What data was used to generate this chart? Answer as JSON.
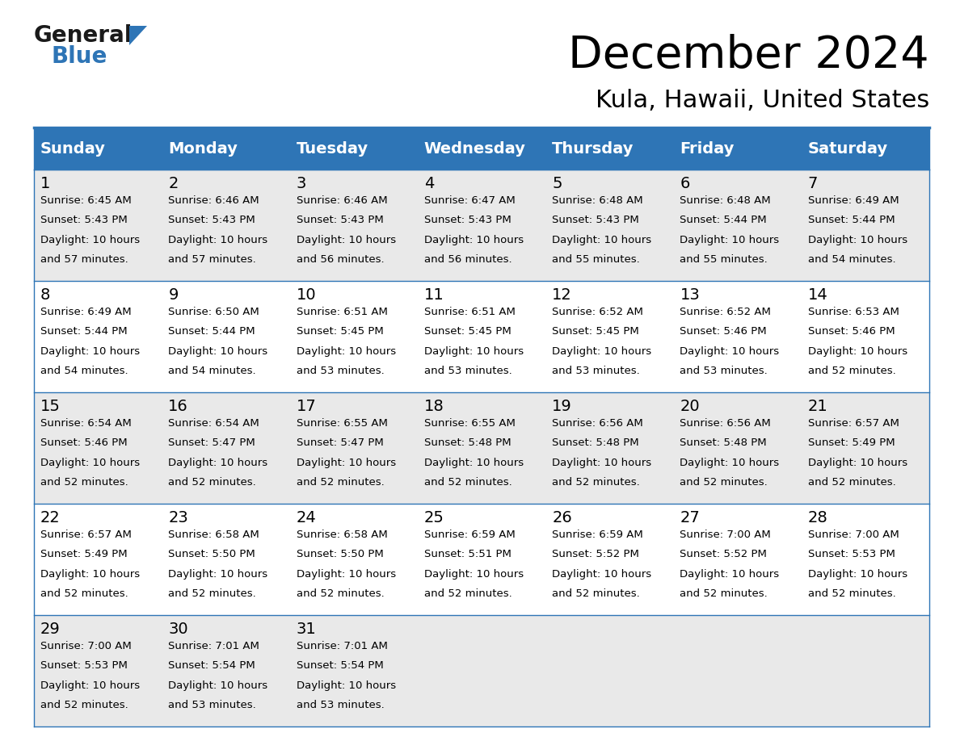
{
  "title": "December 2024",
  "subtitle": "Kula, Hawaii, United States",
  "header_bg_color": "#2E75B6",
  "header_text_color": "#FFFFFF",
  "header_font_size": 14,
  "day_names": [
    "Sunday",
    "Monday",
    "Tuesday",
    "Wednesday",
    "Thursday",
    "Friday",
    "Saturday"
  ],
  "title_font_size": 40,
  "subtitle_font_size": 22,
  "cell_text_font_size": 9.5,
  "day_num_font_size": 14,
  "bg_color": "#FFFFFF",
  "row_colors": [
    "#E9E9E9",
    "#FFFFFF",
    "#E9E9E9",
    "#FFFFFF",
    "#E9E9E9"
  ],
  "grid_color": "#2E75B6",
  "general_text_color": "#000000",
  "logo_blue_color": "#2E75B6",
  "logo_dark_color": "#1A1A1A",
  "weeks": [
    [
      {
        "day": 1,
        "sunrise": "6:45 AM",
        "sunset": "5:43 PM",
        "daylight": "10 hours and 57 minutes"
      },
      {
        "day": 2,
        "sunrise": "6:46 AM",
        "sunset": "5:43 PM",
        "daylight": "10 hours and 57 minutes"
      },
      {
        "day": 3,
        "sunrise": "6:46 AM",
        "sunset": "5:43 PM",
        "daylight": "10 hours and 56 minutes"
      },
      {
        "day": 4,
        "sunrise": "6:47 AM",
        "sunset": "5:43 PM",
        "daylight": "10 hours and 56 minutes"
      },
      {
        "day": 5,
        "sunrise": "6:48 AM",
        "sunset": "5:43 PM",
        "daylight": "10 hours and 55 minutes"
      },
      {
        "day": 6,
        "sunrise": "6:48 AM",
        "sunset": "5:44 PM",
        "daylight": "10 hours and 55 minutes"
      },
      {
        "day": 7,
        "sunrise": "6:49 AM",
        "sunset": "5:44 PM",
        "daylight": "10 hours and 54 minutes"
      }
    ],
    [
      {
        "day": 8,
        "sunrise": "6:49 AM",
        "sunset": "5:44 PM",
        "daylight": "10 hours and 54 minutes"
      },
      {
        "day": 9,
        "sunrise": "6:50 AM",
        "sunset": "5:44 PM",
        "daylight": "10 hours and 54 minutes"
      },
      {
        "day": 10,
        "sunrise": "6:51 AM",
        "sunset": "5:45 PM",
        "daylight": "10 hours and 53 minutes"
      },
      {
        "day": 11,
        "sunrise": "6:51 AM",
        "sunset": "5:45 PM",
        "daylight": "10 hours and 53 minutes"
      },
      {
        "day": 12,
        "sunrise": "6:52 AM",
        "sunset": "5:45 PM",
        "daylight": "10 hours and 53 minutes"
      },
      {
        "day": 13,
        "sunrise": "6:52 AM",
        "sunset": "5:46 PM",
        "daylight": "10 hours and 53 minutes"
      },
      {
        "day": 14,
        "sunrise": "6:53 AM",
        "sunset": "5:46 PM",
        "daylight": "10 hours and 52 minutes"
      }
    ],
    [
      {
        "day": 15,
        "sunrise": "6:54 AM",
        "sunset": "5:46 PM",
        "daylight": "10 hours and 52 minutes"
      },
      {
        "day": 16,
        "sunrise": "6:54 AM",
        "sunset": "5:47 PM",
        "daylight": "10 hours and 52 minutes"
      },
      {
        "day": 17,
        "sunrise": "6:55 AM",
        "sunset": "5:47 PM",
        "daylight": "10 hours and 52 minutes"
      },
      {
        "day": 18,
        "sunrise": "6:55 AM",
        "sunset": "5:48 PM",
        "daylight": "10 hours and 52 minutes"
      },
      {
        "day": 19,
        "sunrise": "6:56 AM",
        "sunset": "5:48 PM",
        "daylight": "10 hours and 52 minutes"
      },
      {
        "day": 20,
        "sunrise": "6:56 AM",
        "sunset": "5:48 PM",
        "daylight": "10 hours and 52 minutes"
      },
      {
        "day": 21,
        "sunrise": "6:57 AM",
        "sunset": "5:49 PM",
        "daylight": "10 hours and 52 minutes"
      }
    ],
    [
      {
        "day": 22,
        "sunrise": "6:57 AM",
        "sunset": "5:49 PM",
        "daylight": "10 hours and 52 minutes"
      },
      {
        "day": 23,
        "sunrise": "6:58 AM",
        "sunset": "5:50 PM",
        "daylight": "10 hours and 52 minutes"
      },
      {
        "day": 24,
        "sunrise": "6:58 AM",
        "sunset": "5:50 PM",
        "daylight": "10 hours and 52 minutes"
      },
      {
        "day": 25,
        "sunrise": "6:59 AM",
        "sunset": "5:51 PM",
        "daylight": "10 hours and 52 minutes"
      },
      {
        "day": 26,
        "sunrise": "6:59 AM",
        "sunset": "5:52 PM",
        "daylight": "10 hours and 52 minutes"
      },
      {
        "day": 27,
        "sunrise": "7:00 AM",
        "sunset": "5:52 PM",
        "daylight": "10 hours and 52 minutes"
      },
      {
        "day": 28,
        "sunrise": "7:00 AM",
        "sunset": "5:53 PM",
        "daylight": "10 hours and 52 minutes"
      }
    ],
    [
      {
        "day": 29,
        "sunrise": "7:00 AM",
        "sunset": "5:53 PM",
        "daylight": "10 hours and 52 minutes"
      },
      {
        "day": 30,
        "sunrise": "7:01 AM",
        "sunset": "5:54 PM",
        "daylight": "10 hours and 53 minutes"
      },
      {
        "day": 31,
        "sunrise": "7:01 AM",
        "sunset": "5:54 PM",
        "daylight": "10 hours and 53 minutes"
      },
      null,
      null,
      null,
      null
    ]
  ]
}
